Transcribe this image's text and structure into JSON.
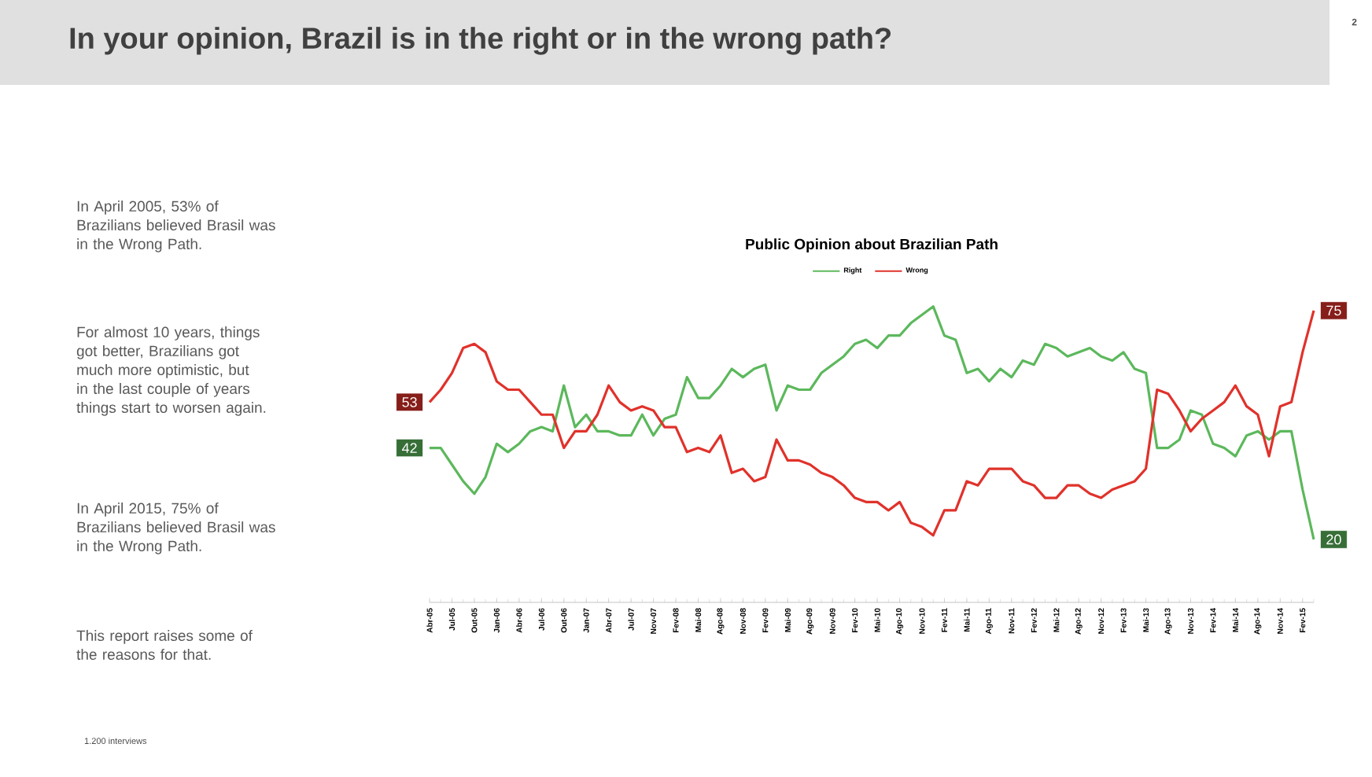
{
  "chart_data": {
    "type": "line",
    "title": "In your opinion, Brazil is in the right or in the wrong path?",
    "subtitle": "Public Opinion about Brazilian Path",
    "categories": [
      "Abr-05",
      null,
      "Jul-05",
      null,
      "Out-05",
      null,
      "Jan-06",
      null,
      "Abr-06",
      null,
      "Jul-06",
      null,
      "Out-06",
      null,
      "Jan-07",
      null,
      "Abr-07",
      null,
      "Jul-07",
      null,
      "Nov-07",
      null,
      "Fev-08",
      null,
      "Mai-08",
      null,
      "Ago-08",
      null,
      "Nov-08",
      null,
      "Fev-09",
      null,
      "Mai-09",
      null,
      "Ago-09",
      null,
      "Nov-09",
      null,
      "Fev-10",
      null,
      "Mai-10",
      null,
      "Ago-10",
      null,
      "Nov-10",
      null,
      "Fev-11",
      null,
      "Mai-11",
      null,
      "Ago-11",
      null,
      "Nov-11",
      null,
      "Fev-12",
      null,
      "Mai-12",
      null,
      "Ago-12",
      null,
      "Nov-12",
      null,
      "Fev-13",
      null,
      "Mai-13",
      null,
      "Ago-13",
      null,
      "Nov-13",
      null,
      "Fev-14",
      null,
      "Mai-14",
      null,
      "Ago-14",
      null,
      "Nov-14",
      null,
      "Fev-15",
      null
    ],
    "series": [
      {
        "name": "Right",
        "color": "#5cb85c",
        "values": [
          42,
          42,
          38,
          34,
          31,
          35,
          43,
          41,
          43,
          46,
          47,
          46,
          57,
          47,
          50,
          46,
          46,
          45,
          45,
          50,
          45,
          49,
          50,
          59,
          54,
          54,
          57,
          61,
          59,
          61,
          62,
          51,
          57,
          56,
          56,
          60,
          62,
          64,
          67,
          68,
          66,
          69,
          69,
          72,
          74,
          76,
          69,
          68,
          60,
          61,
          58,
          61,
          59,
          63,
          62,
          67,
          66,
          64,
          65,
          66,
          64,
          63,
          65,
          61,
          60,
          42,
          42,
          44,
          51,
          50,
          43,
          42,
          40,
          45,
          46,
          44,
          46,
          46,
          32,
          20
        ],
        "value_labels": [
          "42",
          null,
          null,
          null,
          null,
          null,
          null,
          null,
          null,
          null,
          null,
          null,
          null,
          null,
          null,
          null,
          null,
          null,
          null,
          null,
          null,
          null,
          null,
          null,
          null,
          null,
          null,
          null,
          null,
          null,
          null,
          null,
          null,
          null,
          null,
          null,
          null,
          null,
          null,
          null,
          null,
          null,
          null,
          null,
          null,
          null,
          null,
          null,
          null,
          null,
          null,
          null,
          null,
          null,
          null,
          null,
          null,
          null,
          null,
          null,
          null,
          null,
          null,
          null,
          null,
          null,
          null,
          null,
          null,
          null,
          null,
          null,
          null,
          null,
          null,
          null,
          null,
          null,
          null,
          "20"
        ]
      },
      {
        "name": "Wrong",
        "color": "#e0322b",
        "values": [
          53,
          56,
          60,
          66,
          67,
          65,
          58,
          56,
          56,
          53,
          50,
          50,
          42,
          46,
          46,
          50,
          57,
          53,
          51,
          52,
          51,
          47,
          47,
          41,
          42,
          41,
          45,
          36,
          37,
          34,
          35,
          44,
          39,
          39,
          38,
          36,
          35,
          33,
          30,
          29,
          29,
          27,
          29,
          24,
          23,
          21,
          27,
          27,
          34,
          33,
          37,
          37,
          37,
          34,
          33,
          30,
          30,
          33,
          33,
          31,
          30,
          32,
          33,
          34,
          37,
          56,
          55,
          51,
          46,
          49,
          51,
          53,
          57,
          52,
          50,
          40,
          52,
          53,
          65,
          75
        ],
        "value_labels": [
          "53",
          null,
          null,
          null,
          null,
          null,
          null,
          null,
          null,
          null,
          null,
          null,
          null,
          null,
          null,
          null,
          null,
          null,
          null,
          null,
          null,
          null,
          null,
          null,
          null,
          null,
          null,
          null,
          null,
          null,
          null,
          null,
          null,
          null,
          null,
          null,
          null,
          null,
          null,
          null,
          null,
          null,
          null,
          null,
          null,
          null,
          null,
          null,
          null,
          null,
          null,
          null,
          null,
          null,
          null,
          null,
          null,
          null,
          null,
          null,
          null,
          null,
          null,
          null,
          null,
          null,
          null,
          null,
          null,
          null,
          null,
          null,
          null,
          null,
          null,
          null,
          null,
          null,
          null,
          "75"
        ]
      }
    ],
    "legend": "top",
    "annotations": [
      "In April 2005, 53% of Brazilians believed Brasil was in the Wrong Path.",
      "For almost 10 years, things got better, Brazilians got much more optimistic, but in the last couple of years things start to worsen again.",
      "In April 2015, 75% of Brazilians believed Brasil was in the Wrong Path.",
      "This report raises some of the reasons for that.",
      "1.200 interviews",
      "2"
    ]
  }
}
